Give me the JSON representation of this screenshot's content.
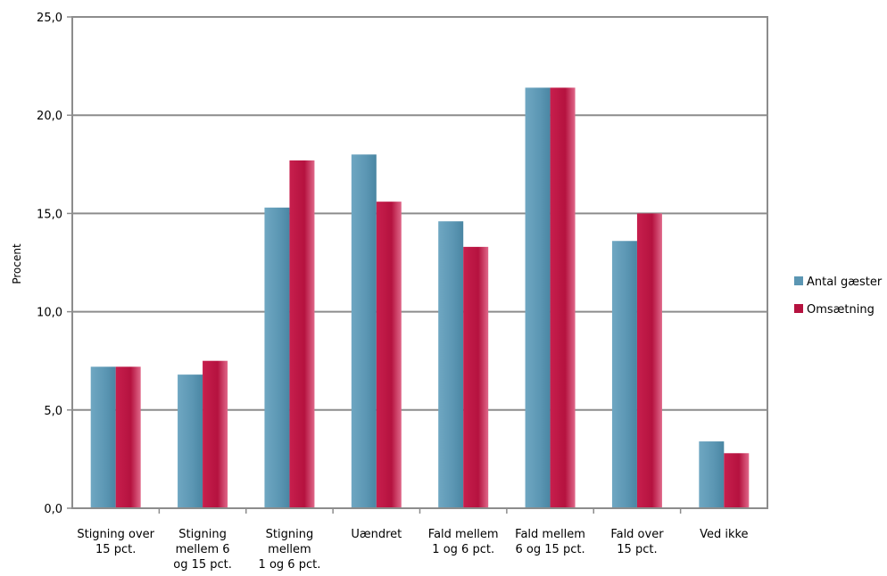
{
  "chart_data": {
    "type": "bar",
    "ylabel": "Procent",
    "xlabel": "",
    "ylim": [
      0,
      25
    ],
    "yticks": [
      "0,0",
      "5,0",
      "10,0",
      "15,0",
      "20,0",
      "25,0"
    ],
    "grid": true,
    "legend_position": "right",
    "categories": [
      [
        "Stigning over",
        "15 pct."
      ],
      [
        "Stigning",
        "mellem 6",
        "og 15 pct."
      ],
      [
        "Stigning",
        "mellem",
        "1 og 6 pct."
      ],
      [
        "Uændret"
      ],
      [
        "Fald mellem",
        "1 og 6 pct."
      ],
      [
        "Fald mellem",
        "6 og 15 pct."
      ],
      [
        "Fald over",
        "15 pct."
      ],
      [
        "Ved ikke"
      ]
    ],
    "series": [
      {
        "name": "Antal gæster",
        "color": "#5b96b3",
        "values": [
          7.2,
          6.8,
          15.3,
          18.0,
          14.6,
          21.4,
          13.6,
          3.4
        ]
      },
      {
        "name": "Omsætning",
        "color": "#b5123f",
        "values": [
          7.2,
          7.5,
          17.7,
          15.6,
          13.3,
          21.4,
          15.0,
          2.8
        ]
      }
    ]
  }
}
